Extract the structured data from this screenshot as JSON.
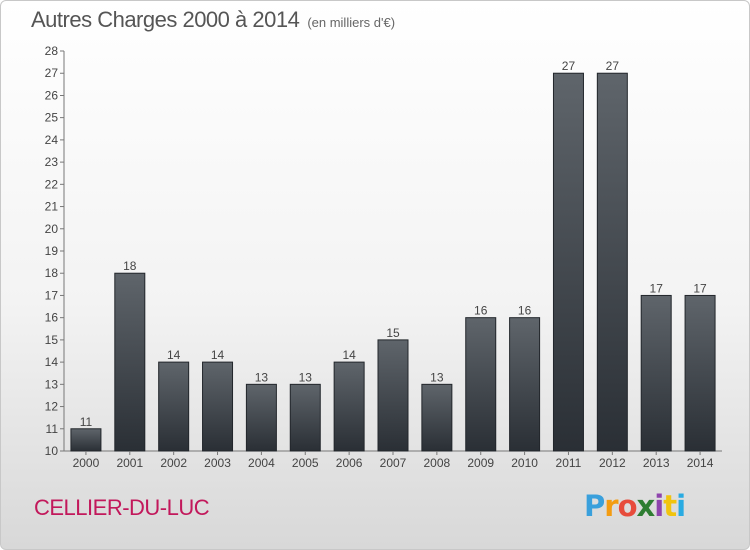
{
  "header": {
    "title": "Autres Charges 2000 à 2014",
    "subtitle": "(en milliers d'€)"
  },
  "footer": {
    "commune": "CELLIER-DU-LUC",
    "logo_letters": [
      "P",
      "r",
      "o",
      "x",
      "i",
      "t",
      "i"
    ],
    "logo_colors": [
      "#3aa0dc",
      "#f39c12",
      "#e74c3c",
      "#2e7d32",
      "#8e44ad",
      "#f1c40f",
      "#29abe2"
    ]
  },
  "chart_data": {
    "type": "bar",
    "title": "Autres Charges 2000 à 2014",
    "subtitle": "(en milliers d'€)",
    "categories": [
      "2000",
      "2001",
      "2002",
      "2003",
      "2004",
      "2005",
      "2006",
      "2007",
      "2008",
      "2009",
      "2010",
      "2011",
      "2012",
      "2013",
      "2014"
    ],
    "values": [
      11,
      18,
      14,
      14,
      13,
      13,
      14,
      15,
      13,
      16,
      16,
      27,
      27,
      17,
      17
    ],
    "ylim": [
      10,
      28
    ],
    "yticks": [
      10,
      11,
      12,
      13,
      14,
      15,
      16,
      17,
      18,
      19,
      20,
      21,
      22,
      23,
      24,
      25,
      26,
      27,
      28
    ],
    "grid": false,
    "legend": "none",
    "bar_color_top": "#5f656b",
    "bar_color_bottom": "#2a2f35"
  }
}
